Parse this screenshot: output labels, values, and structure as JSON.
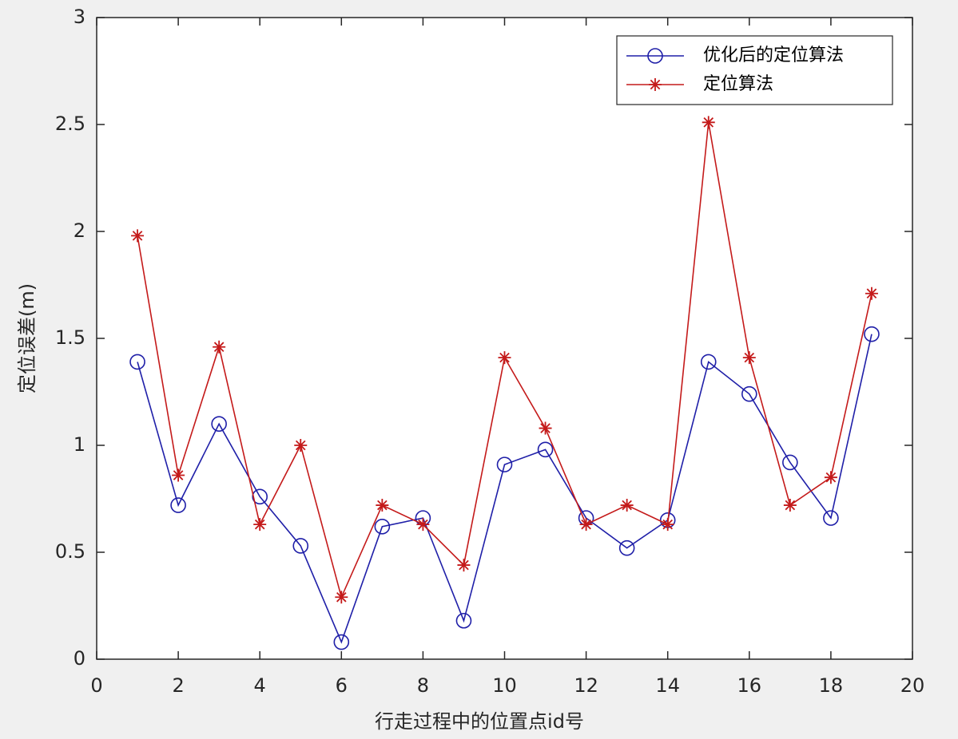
{
  "chart_data": {
    "type": "line",
    "xlabel": "行走过程中的位置点id号",
    "ylabel": "定位误差(m)",
    "x": [
      1,
      2,
      3,
      4,
      5,
      6,
      7,
      8,
      9,
      10,
      11,
      12,
      13,
      14,
      15,
      16,
      17,
      18,
      19
    ],
    "series": [
      {
        "name": "优化后的定位算法",
        "color": "#1f1fa8",
        "marker": "circle",
        "values": [
          1.39,
          0.72,
          1.1,
          0.76,
          0.53,
          0.08,
          0.62,
          0.66,
          0.18,
          0.91,
          0.98,
          0.66,
          0.52,
          0.65,
          1.39,
          1.24,
          0.92,
          0.66,
          1.52
        ]
      },
      {
        "name": "定位算法",
        "color": "#c41a1a",
        "marker": "asterisk",
        "values": [
          1.98,
          0.86,
          1.46,
          0.63,
          1.0,
          0.29,
          0.72,
          0.63,
          0.44,
          1.41,
          1.08,
          0.63,
          0.72,
          0.63,
          2.51,
          1.41,
          0.72,
          0.85,
          1.71
        ]
      }
    ],
    "xlim": [
      0,
      20
    ],
    "xticks": [
      0,
      2,
      4,
      6,
      8,
      10,
      12,
      14,
      16,
      18,
      20
    ],
    "ylim": [
      0,
      3
    ],
    "yticks": [
      0,
      0.5,
      1,
      1.5,
      2,
      2.5,
      3
    ],
    "grid": false,
    "legend": "northeast"
  }
}
